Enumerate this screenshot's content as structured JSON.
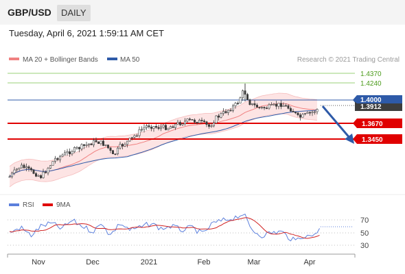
{
  "header": {
    "pair": "GBP/USD",
    "timeframe": "DAILY"
  },
  "timestamp": "Tuesday, April 6, 2021 1:59:11 AM CET",
  "legend": {
    "ma20": "MA 20 + Bollinger Bands",
    "ma50": "MA 50",
    "credit": "Research © 2021 Trading Central"
  },
  "colors": {
    "ma20": "#f08080",
    "ma50": "#2e5aa8",
    "resistance": "#2e5aa8",
    "support": "#e00000",
    "green": "#88cc66",
    "price": "#3d3d3d"
  },
  "chart_data": [
    {
      "type": "candlestick",
      "title": "GBP/USD",
      "ylim": [
        1.298,
        1.445
      ],
      "x_labels": [
        "Nov",
        "Dec",
        "2021",
        "Feb",
        "Mar",
        "Apr"
      ],
      "current_price": "1.3912",
      "levels": [
        {
          "value": 1.437,
          "label": "1.4370",
          "kind": "target"
        },
        {
          "value": 1.424,
          "label": "1.4240",
          "kind": "target"
        },
        {
          "value": 1.4,
          "label": "1.4000",
          "kind": "resistance"
        },
        {
          "value": 1.367,
          "label": "1.3670",
          "kind": "support"
        },
        {
          "value": 1.345,
          "label": "1.3450",
          "kind": "support"
        }
      ],
      "forecast_arrow": {
        "from": 1.394,
        "to": 1.345,
        "direction": "down"
      }
    },
    {
      "type": "line",
      "series": [
        {
          "name": "RSI"
        },
        {
          "name": "9MA"
        }
      ],
      "ylim": [
        20,
        80
      ],
      "ticks": [
        "70",
        "50",
        "30"
      ]
    }
  ],
  "rsi_legend": {
    "rsi": "RSI",
    "ma9": "9MA"
  }
}
